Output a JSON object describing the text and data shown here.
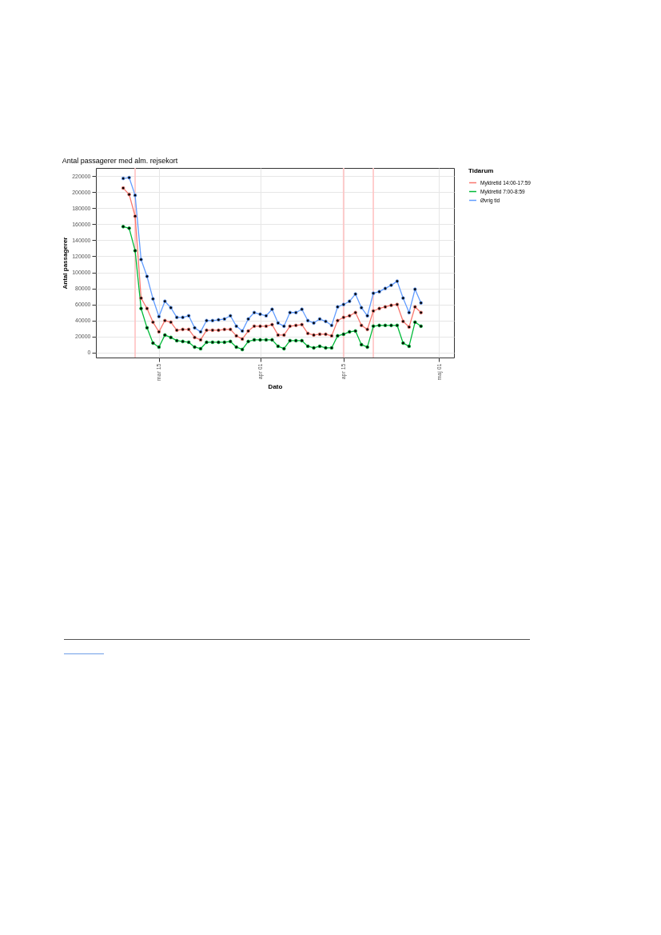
{
  "chart_data": {
    "type": "line",
    "title": "Antal passagerer med alm. rejsekort",
    "xlabel": "Dato",
    "ylabel": "Antal passagerer",
    "legend_title": "Tidarum",
    "legend": "right",
    "grid": true,
    "marker": "circle",
    "line_style": "solid",
    "x": [
      "--03-09",
      "--03-10",
      "--03-11",
      "--03-12",
      "--03-13",
      "--03-14",
      "--03-15",
      "--03-16",
      "--03-17",
      "--03-18",
      "--03-19",
      "--03-20",
      "--03-21",
      "--03-22",
      "--03-23",
      "--03-24",
      "--03-25",
      "--03-26",
      "--03-27",
      "--03-28",
      "--03-29",
      "--03-30",
      "--03-31",
      "--04-01",
      "--04-02",
      "--04-03",
      "--04-04",
      "--04-05",
      "--04-06",
      "--04-07",
      "--04-08",
      "--04-09",
      "--04-10",
      "--04-11",
      "--04-12",
      "--04-13",
      "--04-14",
      "--04-15",
      "--04-16",
      "--04-17",
      "--04-18",
      "--04-19",
      "--04-20",
      "--04-21",
      "--04-22",
      "--04-23",
      "--04-24",
      "--04-25",
      "--04-26",
      "--04-27",
      "--04-28"
    ],
    "series": [
      {
        "name": "Myldretid 14:00-17:59",
        "color": "#f8766d",
        "values": [
          205000,
          197000,
          170000,
          68000,
          55000,
          38000,
          26000,
          40000,
          38000,
          28000,
          29000,
          29000,
          19000,
          16000,
          28000,
          28000,
          28000,
          29000,
          29000,
          21000,
          17000,
          27000,
          33000,
          33000,
          33000,
          35000,
          22000,
          22000,
          33000,
          34000,
          35000,
          24000,
          22000,
          23000,
          23000,
          21000,
          40000,
          44000,
          46000,
          50000,
          34000,
          29000,
          52000,
          55000,
          57000,
          59000,
          60000,
          39000,
          32000,
          57000,
          50000
        ]
      },
      {
        "name": "Myldretid 7:00-8:59",
        "color": "#00ba38",
        "values": [
          157000,
          155000,
          127000,
          55000,
          31000,
          12000,
          7000,
          22000,
          19000,
          15000,
          14000,
          13000,
          7000,
          5000,
          13000,
          13000,
          13000,
          13000,
          14000,
          7000,
          4000,
          14000,
          16000,
          16000,
          16000,
          16000,
          8000,
          5000,
          15000,
          15000,
          15000,
          8000,
          6000,
          8000,
          6000,
          6000,
          21000,
          23000,
          26000,
          27000,
          10000,
          7000,
          33000,
          34000,
          34000,
          34000,
          34000,
          12000,
          8000,
          38000,
          33000
        ]
      },
      {
        "name": "Øvrig tid",
        "color": "#619cff",
        "values": [
          217000,
          218000,
          196000,
          116000,
          95000,
          67000,
          45000,
          64000,
          56000,
          44000,
          44000,
          46000,
          31000,
          26000,
          40000,
          40000,
          41000,
          42000,
          46000,
          33000,
          27000,
          42000,
          50000,
          48000,
          46000,
          54000,
          37000,
          33000,
          50000,
          50000,
          54000,
          40000,
          37000,
          42000,
          39000,
          34000,
          57000,
          60000,
          64000,
          73000,
          56000,
          46000,
          74000,
          76000,
          80000,
          84000,
          89000,
          68000,
          50000,
          79000,
          62000
        ]
      }
    ],
    "xlim": [
      "--03-04T10:00",
      "--05-03T13:00"
    ],
    "xticks": [
      {
        "value": "--03-15",
        "label": "mar 15"
      },
      {
        "value": "--04-01",
        "label": "apr 01"
      },
      {
        "value": "--04-15",
        "label": "apr 15"
      },
      {
        "value": "--05-01",
        "label": "maj 01"
      }
    ],
    "ylim": [
      -6000,
      230000
    ],
    "yticks": [
      0,
      20000,
      40000,
      60000,
      80000,
      100000,
      120000,
      140000,
      160000,
      180000,
      200000,
      220000
    ],
    "bands": [
      {
        "axis": "x",
        "from": "--03-10T21:00",
        "to": "--03-11T03:00",
        "color": "#ffc4c4"
      },
      {
        "axis": "x",
        "from": "--04-14T21:00",
        "to": "--04-15T03:00",
        "color": "#ffc4c4"
      },
      {
        "axis": "x",
        "from": "--04-19T21:00",
        "to": "--04-20T03:00",
        "color": "#ffc4c4"
      }
    ]
  }
}
